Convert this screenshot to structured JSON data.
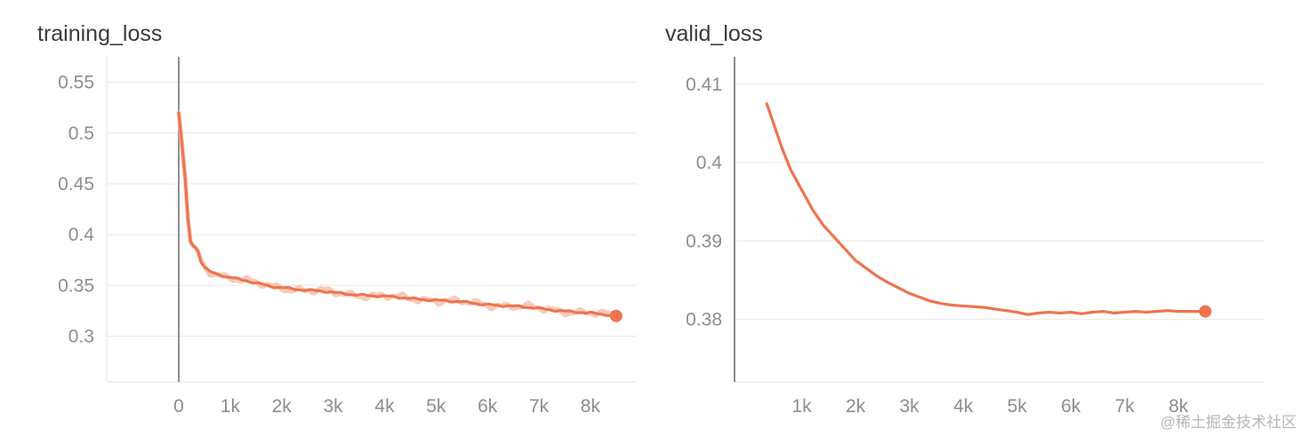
{
  "watermark": "@稀土掘金技术社区",
  "colors": {
    "line": "#ee7450",
    "line_raw": "#f6c2ae",
    "grid": "#e8e8e8",
    "axis": "#8f8f8f",
    "plot_border": "#e0e0e0",
    "tick_label": "#8d8d8d",
    "title": "#3b3b3b",
    "watermark": "#b6b6b6"
  },
  "chart_data": [
    {
      "type": "line",
      "title": "training_loss",
      "xlim": [
        -1400,
        8900
      ],
      "ylim": [
        0.255,
        0.575
      ],
      "axis_x": 0,
      "grid": true,
      "x_ticks": [
        {
          "v": 0,
          "label": "0"
        },
        {
          "v": 1000,
          "label": "1k"
        },
        {
          "v": 2000,
          "label": "2k"
        },
        {
          "v": 3000,
          "label": "3k"
        },
        {
          "v": 4000,
          "label": "4k"
        },
        {
          "v": 5000,
          "label": "5k"
        },
        {
          "v": 6000,
          "label": "6k"
        },
        {
          "v": 7000,
          "label": "7k"
        },
        {
          "v": 8000,
          "label": "8k"
        }
      ],
      "y_ticks": [
        {
          "v": 0.3,
          "label": "0.3"
        },
        {
          "v": 0.35,
          "label": "0.35"
        },
        {
          "v": 0.4,
          "label": "0.4"
        },
        {
          "v": 0.45,
          "label": "0.45"
        },
        {
          "v": 0.5,
          "label": "0.5"
        },
        {
          "v": 0.55,
          "label": "0.55"
        }
      ],
      "series": [
        {
          "name": "training_loss",
          "points": [
            [
              0,
              0.52
            ],
            [
              60,
              0.49
            ],
            [
              120,
              0.458
            ],
            [
              180,
              0.415
            ],
            [
              230,
              0.393
            ],
            [
              280,
              0.389
            ],
            [
              330,
              0.387
            ],
            [
              380,
              0.383
            ],
            [
              430,
              0.374
            ],
            [
              500,
              0.368
            ],
            [
              600,
              0.364
            ],
            [
              700,
              0.362
            ],
            [
              800,
              0.361
            ],
            [
              900,
              0.359
            ],
            [
              1000,
              0.358
            ],
            [
              1150,
              0.356
            ],
            [
              1300,
              0.3545
            ],
            [
              1450,
              0.3525
            ],
            [
              1600,
              0.351
            ],
            [
              1750,
              0.3495
            ],
            [
              1900,
              0.3485
            ],
            [
              2050,
              0.348
            ],
            [
              2200,
              0.347
            ],
            [
              2350,
              0.346
            ],
            [
              2500,
              0.345
            ],
            [
              2650,
              0.3445
            ],
            [
              2800,
              0.344
            ],
            [
              2950,
              0.3432
            ],
            [
              3100,
              0.3425
            ],
            [
              3250,
              0.342
            ],
            [
              3400,
              0.3413
            ],
            [
              3550,
              0.3407
            ],
            [
              3700,
              0.34
            ],
            [
              3850,
              0.3395
            ],
            [
              4000,
              0.339
            ],
            [
              4150,
              0.3385
            ],
            [
              4300,
              0.338
            ],
            [
              4450,
              0.3375
            ],
            [
              4600,
              0.337
            ],
            [
              4750,
              0.3365
            ],
            [
              4900,
              0.336
            ],
            [
              5050,
              0.3352
            ],
            [
              5200,
              0.3347
            ],
            [
              5350,
              0.334
            ],
            [
              5500,
              0.3335
            ],
            [
              5650,
              0.333
            ],
            [
              5800,
              0.3322
            ],
            [
              5950,
              0.3315
            ],
            [
              6100,
              0.331
            ],
            [
              6250,
              0.3305
            ],
            [
              6400,
              0.33
            ],
            [
              6550,
              0.3292
            ],
            [
              6700,
              0.3285
            ],
            [
              6850,
              0.328
            ],
            [
              7000,
              0.3272
            ],
            [
              7150,
              0.3265
            ],
            [
              7300,
              0.326
            ],
            [
              7450,
              0.3252
            ],
            [
              7600,
              0.3245
            ],
            [
              7750,
              0.3238
            ],
            [
              7900,
              0.323
            ],
            [
              8050,
              0.3222
            ],
            [
              8200,
              0.3215
            ],
            [
              8350,
              0.3208
            ],
            [
              8500,
              0.32
            ]
          ]
        }
      ],
      "end_dot": [
        8500,
        0.32
      ],
      "raw_overlay": true,
      "jitter_main": 0.0013,
      "jitter_raw": 0.0045,
      "jitter_start_x": 380
    },
    {
      "type": "line",
      "title": "valid_loss",
      "xlim": [
        -250,
        9600
      ],
      "ylim": [
        0.372,
        0.4135
      ],
      "axis_x": -250,
      "grid": true,
      "x_ticks": [
        {
          "v": 1000,
          "label": "1k"
        },
        {
          "v": 2000,
          "label": "2k"
        },
        {
          "v": 3000,
          "label": "3k"
        },
        {
          "v": 4000,
          "label": "4k"
        },
        {
          "v": 5000,
          "label": "5k"
        },
        {
          "v": 6000,
          "label": "6k"
        },
        {
          "v": 7000,
          "label": "7k"
        },
        {
          "v": 8000,
          "label": "8k"
        }
      ],
      "y_ticks": [
        {
          "v": 0.38,
          "label": "0.38"
        },
        {
          "v": 0.39,
          "label": "0.39"
        },
        {
          "v": 0.4,
          "label": "0.4"
        },
        {
          "v": 0.41,
          "label": "0.41"
        }
      ],
      "series": [
        {
          "name": "valid_loss",
          "points": [
            [
              350,
              0.4075
            ],
            [
              500,
              0.4045
            ],
            [
              650,
              0.4015
            ],
            [
              800,
              0.399
            ],
            [
              1000,
              0.3965
            ],
            [
              1200,
              0.394
            ],
            [
              1400,
              0.392
            ],
            [
              1600,
              0.3905
            ],
            [
              1800,
              0.389
            ],
            [
              2000,
              0.3875
            ],
            [
              2200,
              0.3865
            ],
            [
              2400,
              0.3855
            ],
            [
              2600,
              0.3847
            ],
            [
              2800,
              0.384
            ],
            [
              3000,
              0.3833
            ],
            [
              3200,
              0.3828
            ],
            [
              3400,
              0.3823
            ],
            [
              3600,
              0.382
            ],
            [
              3800,
              0.3818
            ],
            [
              4000,
              0.3817
            ],
            [
              4200,
              0.3816
            ],
            [
              4400,
              0.3815
            ],
            [
              4600,
              0.3813
            ],
            [
              4800,
              0.3811
            ],
            [
              5000,
              0.3809
            ],
            [
              5200,
              0.3806
            ],
            [
              5400,
              0.3808
            ],
            [
              5600,
              0.3809
            ],
            [
              5800,
              0.3808
            ],
            [
              6000,
              0.3809
            ],
            [
              6200,
              0.3807
            ],
            [
              6400,
              0.3809
            ],
            [
              6600,
              0.381
            ],
            [
              6800,
              0.3808
            ],
            [
              7000,
              0.3809
            ],
            [
              7200,
              0.381
            ],
            [
              7400,
              0.3809
            ],
            [
              7600,
              0.381
            ],
            [
              7800,
              0.3811
            ],
            [
              8000,
              0.381
            ],
            [
              8200,
              0.381
            ],
            [
              8400,
              0.381
            ],
            [
              8500,
              0.381
            ]
          ]
        }
      ],
      "end_dot": [
        8500,
        0.381
      ],
      "raw_overlay": false,
      "jitter_main": 0,
      "jitter_raw": 0,
      "jitter_start_x": 0
    }
  ]
}
